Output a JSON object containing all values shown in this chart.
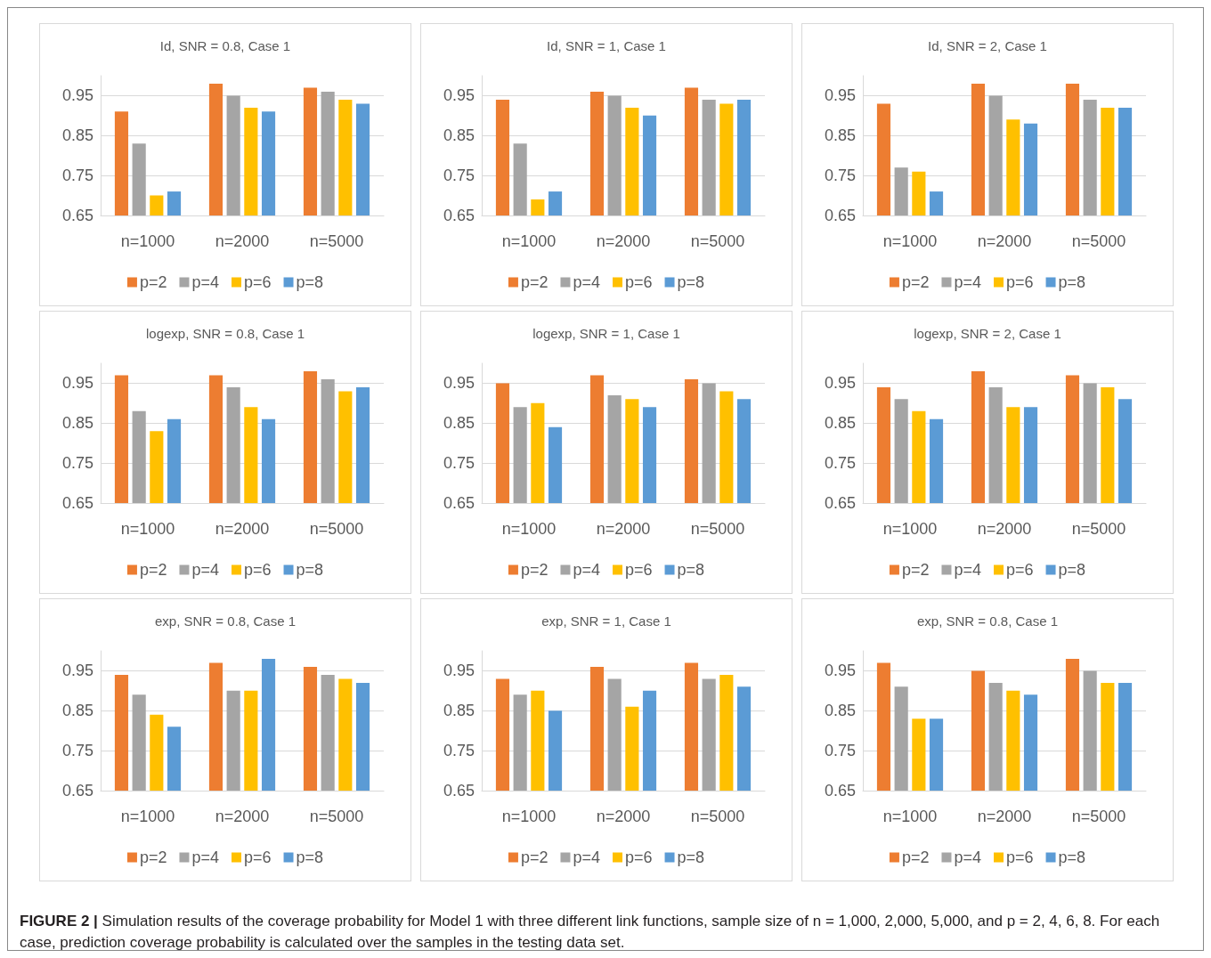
{
  "chart_data": [
    {
      "type": "bar",
      "title": "Id, SNR = 0.8, Case 1",
      "categories": [
        "n=1000",
        "n=2000",
        "n=5000"
      ],
      "ylim": [
        0.65,
        1.0
      ],
      "yticks": [
        0.65,
        0.75,
        0.85,
        0.95
      ],
      "grid": "y",
      "legend": "bottom",
      "series": [
        {
          "name": "p=2",
          "color": "#ed7d31",
          "values": [
            0.91,
            0.98,
            0.97
          ]
        },
        {
          "name": "p=4",
          "color": "#a5a5a5",
          "values": [
            0.83,
            0.95,
            0.96
          ]
        },
        {
          "name": "p=6",
          "color": "#ffc000",
          "values": [
            0.7,
            0.92,
            0.94
          ]
        },
        {
          "name": "p=8",
          "color": "#5b9bd5",
          "values": [
            0.71,
            0.91,
            0.93
          ]
        }
      ]
    },
    {
      "type": "bar",
      "title": "Id, SNR = 1, Case 1",
      "categories": [
        "n=1000",
        "n=2000",
        "n=5000"
      ],
      "ylim": [
        0.65,
        1.0
      ],
      "yticks": [
        0.65,
        0.75,
        0.85,
        0.95
      ],
      "grid": "y",
      "legend": "bottom",
      "series": [
        {
          "name": "p=2",
          "color": "#ed7d31",
          "values": [
            0.94,
            0.96,
            0.97
          ]
        },
        {
          "name": "p=4",
          "color": "#a5a5a5",
          "values": [
            0.83,
            0.95,
            0.94
          ]
        },
        {
          "name": "p=6",
          "color": "#ffc000",
          "values": [
            0.69,
            0.92,
            0.93
          ]
        },
        {
          "name": "p=8",
          "color": "#5b9bd5",
          "values": [
            0.71,
            0.9,
            0.94
          ]
        }
      ]
    },
    {
      "type": "bar",
      "title": "Id, SNR = 2, Case 1",
      "categories": [
        "n=1000",
        "n=2000",
        "n=5000"
      ],
      "ylim": [
        0.65,
        1.0
      ],
      "yticks": [
        0.65,
        0.75,
        0.85,
        0.95
      ],
      "grid": "y",
      "legend": "bottom",
      "series": [
        {
          "name": "p=2",
          "color": "#ed7d31",
          "values": [
            0.93,
            0.98,
            0.98
          ]
        },
        {
          "name": "p=4",
          "color": "#a5a5a5",
          "values": [
            0.77,
            0.95,
            0.94
          ]
        },
        {
          "name": "p=6",
          "color": "#ffc000",
          "values": [
            0.76,
            0.89,
            0.92
          ]
        },
        {
          "name": "p=8",
          "color": "#5b9bd5",
          "values": [
            0.71,
            0.88,
            0.92
          ]
        }
      ]
    },
    {
      "type": "bar",
      "title": "logexp, SNR = 0.8, Case 1",
      "categories": [
        "n=1000",
        "n=2000",
        "n=5000"
      ],
      "ylim": [
        0.65,
        1.0
      ],
      "yticks": [
        0.65,
        0.75,
        0.85,
        0.95
      ],
      "grid": "y",
      "legend": "bottom",
      "series": [
        {
          "name": "p=2",
          "color": "#ed7d31",
          "values": [
            0.97,
            0.97,
            0.98
          ]
        },
        {
          "name": "p=4",
          "color": "#a5a5a5",
          "values": [
            0.88,
            0.94,
            0.96
          ]
        },
        {
          "name": "p=6",
          "color": "#ffc000",
          "values": [
            0.83,
            0.89,
            0.93
          ]
        },
        {
          "name": "p=8",
          "color": "#5b9bd5",
          "values": [
            0.86,
            0.86,
            0.94
          ]
        }
      ]
    },
    {
      "type": "bar",
      "title": "logexp, SNR = 1, Case 1",
      "categories": [
        "n=1000",
        "n=2000",
        "n=5000"
      ],
      "ylim": [
        0.65,
        1.0
      ],
      "yticks": [
        0.65,
        0.75,
        0.85,
        0.95
      ],
      "grid": "y",
      "legend": "bottom",
      "series": [
        {
          "name": "p=2",
          "color": "#ed7d31",
          "values": [
            0.95,
            0.97,
            0.96
          ]
        },
        {
          "name": "p=4",
          "color": "#a5a5a5",
          "values": [
            0.89,
            0.92,
            0.95
          ]
        },
        {
          "name": "p=6",
          "color": "#ffc000",
          "values": [
            0.9,
            0.91,
            0.93
          ]
        },
        {
          "name": "p=8",
          "color": "#5b9bd5",
          "values": [
            0.84,
            0.89,
            0.91
          ]
        }
      ]
    },
    {
      "type": "bar",
      "title": "logexp, SNR = 2, Case 1",
      "categories": [
        "n=1000",
        "n=2000",
        "n=5000"
      ],
      "ylim": [
        0.65,
        1.0
      ],
      "yticks": [
        0.65,
        0.75,
        0.85,
        0.95
      ],
      "grid": "y",
      "legend": "bottom",
      "series": [
        {
          "name": "p=2",
          "color": "#ed7d31",
          "values": [
            0.94,
            0.98,
            0.97
          ]
        },
        {
          "name": "p=4",
          "color": "#a5a5a5",
          "values": [
            0.91,
            0.94,
            0.95
          ]
        },
        {
          "name": "p=6",
          "color": "#ffc000",
          "values": [
            0.88,
            0.89,
            0.94
          ]
        },
        {
          "name": "p=8",
          "color": "#5b9bd5",
          "values": [
            0.86,
            0.89,
            0.91
          ]
        }
      ]
    },
    {
      "type": "bar",
      "title": "exp, SNR = 0.8, Case 1",
      "categories": [
        "n=1000",
        "n=2000",
        "n=5000"
      ],
      "ylim": [
        0.65,
        1.0
      ],
      "yticks": [
        0.65,
        0.75,
        0.85,
        0.95
      ],
      "grid": "y",
      "legend": "bottom",
      "series": [
        {
          "name": "p=2",
          "color": "#ed7d31",
          "values": [
            0.94,
            0.97,
            0.96
          ]
        },
        {
          "name": "p=4",
          "color": "#a5a5a5",
          "values": [
            0.89,
            0.9,
            0.94
          ]
        },
        {
          "name": "p=6",
          "color": "#ffc000",
          "values": [
            0.84,
            0.9,
            0.93
          ]
        },
        {
          "name": "p=8",
          "color": "#5b9bd5",
          "values": [
            0.81,
            0.98,
            0.92
          ]
        }
      ]
    },
    {
      "type": "bar",
      "title": "exp, SNR = 1, Case 1",
      "categories": [
        "n=1000",
        "n=2000",
        "n=5000"
      ],
      "ylim": [
        0.65,
        1.0
      ],
      "yticks": [
        0.65,
        0.75,
        0.85,
        0.95
      ],
      "grid": "y",
      "legend": "bottom",
      "series": [
        {
          "name": "p=2",
          "color": "#ed7d31",
          "values": [
            0.93,
            0.96,
            0.97
          ]
        },
        {
          "name": "p=4",
          "color": "#a5a5a5",
          "values": [
            0.89,
            0.93,
            0.93
          ]
        },
        {
          "name": "p=6",
          "color": "#ffc000",
          "values": [
            0.9,
            0.86,
            0.94
          ]
        },
        {
          "name": "p=8",
          "color": "#5b9bd5",
          "values": [
            0.85,
            0.9,
            0.91
          ]
        }
      ]
    },
    {
      "type": "bar",
      "title": "exp, SNR = 0.8, Case 1",
      "categories": [
        "n=1000",
        "n=2000",
        "n=5000"
      ],
      "ylim": [
        0.65,
        1.0
      ],
      "yticks": [
        0.65,
        0.75,
        0.85,
        0.95
      ],
      "grid": "y",
      "legend": "bottom",
      "series": [
        {
          "name": "p=2",
          "color": "#ed7d31",
          "values": [
            0.97,
            0.95,
            0.98
          ]
        },
        {
          "name": "p=4",
          "color": "#a5a5a5",
          "values": [
            0.91,
            0.92,
            0.95
          ]
        },
        {
          "name": "p=6",
          "color": "#ffc000",
          "values": [
            0.83,
            0.9,
            0.92
          ]
        },
        {
          "name": "p=8",
          "color": "#5b9bd5",
          "values": [
            0.83,
            0.89,
            0.92
          ]
        }
      ],
      "annotations": [
        "FIGURE 2 |",
        "Simulation results of the coverage probability for Model 1 with three different link functions, sample size of n = 1,000, 2,000, 5,000, and p = 2, 4, 6, 8. For each case, prediction coverage probability is calculated over the samples in the testing data set."
      ]
    }
  ]
}
